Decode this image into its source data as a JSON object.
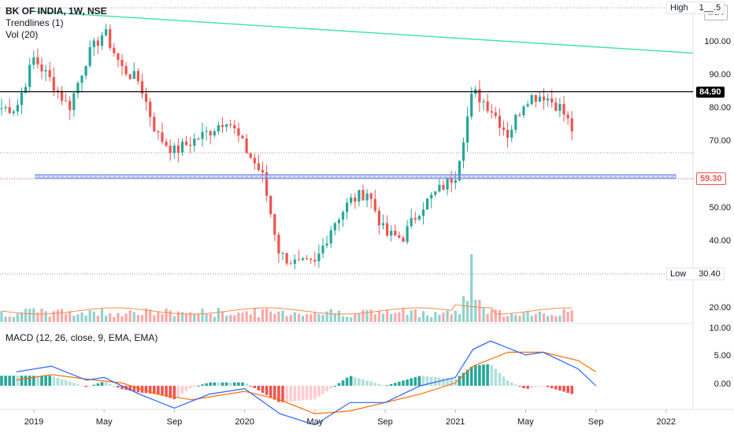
{
  "header": {
    "title": "BK OF INDIA, 1W, NSE",
    "indicator_1": "Trendlines (1)",
    "indicator_2": "Vol (20)",
    "macd_label": "MACD (12, 26, close, 9, EMA, EMA)"
  },
  "currency_badge": "INR",
  "price_axis": {
    "high_label": "High",
    "high_value": "1__.5",
    "low_label": "Low",
    "low_value": "30.40",
    "ticks": [
      "100.00",
      "90.00",
      "80.00",
      "70.00",
      "50.00",
      "40.00",
      "20.00"
    ],
    "resistance_tag": "84.90",
    "current_tag": "59.30",
    "macd_ticks": [
      "10.00",
      "5.00",
      "0.00"
    ]
  },
  "colors": {
    "up": "#26a69a",
    "down": "#ef5350",
    "trendline": "#3ce39b",
    "support_band": "#7b8fe8",
    "macd_line": "#2962ff",
    "signal_line": "#ff6d00",
    "vol_ma": "#ff8a50"
  },
  "chart_data": [
    {
      "type": "line",
      "title": "BK OF INDIA, 1W, NSE",
      "x_ticks": [
        "2019",
        "May",
        "Sep",
        "2020",
        "May",
        "Sep",
        "2021",
        "May",
        "Sep",
        "2022"
      ],
      "ylim": [
        20,
        110
      ],
      "y_ticks": [
        100,
        90,
        80,
        70,
        50,
        40,
        20
      ],
      "high": null,
      "low": 30.4,
      "last_price": 59.3,
      "horizontal_levels": [
        84.9
      ],
      "support_level": 59.3,
      "trendline": {
        "from": {
          "date": "2019-01",
          "price": 109
        },
        "to": {
          "date": "2022-01",
          "price": 96.5
        }
      },
      "close_path": [
        [
          "2018-12",
          80
        ],
        [
          "2019-01",
          95
        ],
        [
          "2019-02",
          88
        ],
        [
          "2019-03",
          80
        ],
        [
          "2019-04",
          95
        ],
        [
          "2019-05",
          103
        ],
        [
          "2019-06",
          92
        ],
        [
          "2019-07",
          88
        ],
        [
          "2019-08",
          72
        ],
        [
          "2019-09",
          67
        ],
        [
          "2019-10",
          70
        ],
        [
          "2019-11",
          73
        ],
        [
          "2019-12",
          77
        ],
        [
          "2020-01",
          68
        ],
        [
          "2020-02",
          60
        ],
        [
          "2020-03",
          36
        ],
        [
          "2020-04",
          33
        ],
        [
          "2020-05",
          33
        ],
        [
          "2020-06",
          45
        ],
        [
          "2020-07",
          52
        ],
        [
          "2020-08",
          55
        ],
        [
          "2020-09",
          42
        ],
        [
          "2020-10",
          41
        ],
        [
          "2020-11",
          50
        ],
        [
          "2020-12",
          55
        ],
        [
          "2021-01",
          60
        ],
        [
          "2021-02",
          85
        ],
        [
          "2021-03",
          80
        ],
        [
          "2021-04",
          72
        ],
        [
          "2021-05",
          83
        ],
        [
          "2021-06",
          84
        ],
        [
          "2021-07",
          80
        ],
        [
          "2021-08",
          70
        ],
        [
          "2021-09",
          59.3
        ]
      ],
      "volume": {
        "peak_date": "2021-02",
        "series": [
          "Vol (20)"
        ]
      }
    },
    {
      "type": "line",
      "title": "MACD (12, 26, close, 9, EMA, EMA)",
      "ylim": [
        -5,
        10
      ],
      "y_ticks": [
        10,
        5,
        0
      ],
      "series": [
        {
          "name": "MACD",
          "points": [
            [
              "2018-12",
              2.5
            ],
            [
              "2019-02",
              3.5
            ],
            [
              "2019-04",
              1.0
            ],
            [
              "2019-05",
              1.5
            ],
            [
              "2019-07",
              -1.5
            ],
            [
              "2019-09",
              -4.0
            ],
            [
              "2019-11",
              -1.5
            ],
            [
              "2020-01",
              -0.5
            ],
            [
              "2020-03",
              -5.0
            ],
            [
              "2020-05",
              -7.0
            ],
            [
              "2020-07",
              -3.0
            ],
            [
              "2020-09",
              -3.0
            ],
            [
              "2020-11",
              0.0
            ],
            [
              "2021-01",
              1.5
            ],
            [
              "2021-02",
              6.5
            ],
            [
              "2021-03",
              8.0
            ],
            [
              "2021-05",
              5.5
            ],
            [
              "2021-06",
              6.0
            ],
            [
              "2021-08",
              3.0
            ],
            [
              "2021-09",
              0.0
            ]
          ]
        },
        {
          "name": "Signal",
          "points": [
            [
              "2018-12",
              1.0
            ],
            [
              "2019-02",
              2.0
            ],
            [
              "2019-04",
              1.2
            ],
            [
              "2019-06",
              0.5
            ],
            [
              "2019-08",
              -1.5
            ],
            [
              "2019-10",
              -2.5
            ],
            [
              "2020-01",
              -1.0
            ],
            [
              "2020-03",
              -2.5
            ],
            [
              "2020-05",
              -5.0
            ],
            [
              "2020-07",
              -4.5
            ],
            [
              "2020-09",
              -3.0
            ],
            [
              "2020-11",
              -1.5
            ],
            [
              "2021-01",
              0.5
            ],
            [
              "2021-02",
              3.5
            ],
            [
              "2021-04",
              6.0
            ],
            [
              "2021-06",
              6.0
            ],
            [
              "2021-08",
              4.5
            ],
            [
              "2021-09",
              2.5
            ]
          ]
        }
      ]
    }
  ]
}
